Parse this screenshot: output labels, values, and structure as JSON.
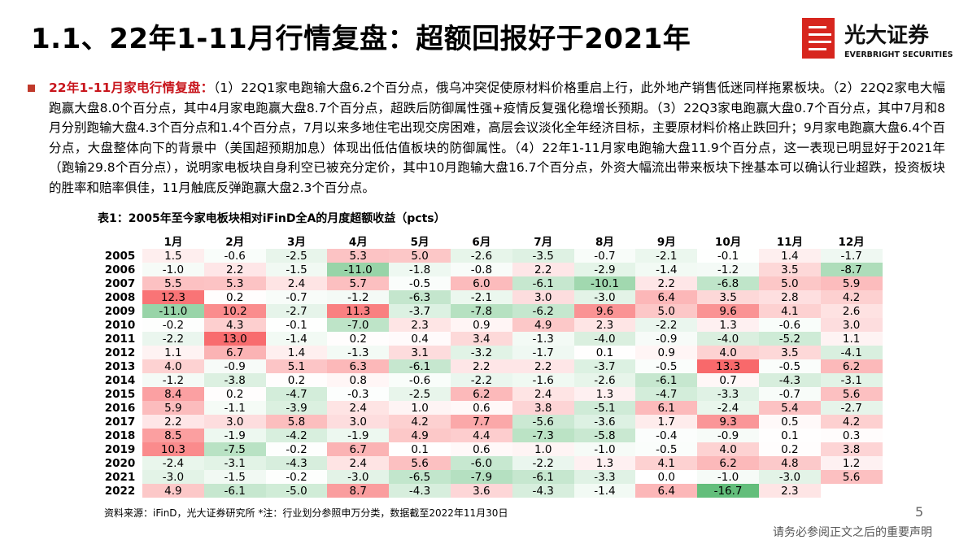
{
  "header": {
    "title": "1.1、22年1-11月行情复盘：超额回报好于2021年",
    "logo_cn": "光大证券",
    "logo_en": "EVERBRIGHT SECURITIES"
  },
  "summary": {
    "lead": "22年1-11月家电行情复盘：",
    "text": "（1）22Q1家电跑输大盘6.2个百分点，俄乌冲突促使原材料价格重启上行，此外地产销售低迷同样拖累板块。（2）22Q2家电大幅跑赢大盘8.0个百分点，其中4月家电跑赢大盘8.7个百分点，超跌后防御属性强+疫情反复强化稳增长预期。（3）22Q3家电跑赢大盘0.7个百分点，其中7月和8月分别跑输大盘4.3个百分点和1.4个百分点，7月以来多地住宅出现交房困难，高层会议淡化全年经济目标，主要原材料价格止跌回升；9月家电跑赢大盘6.4个百分点，大盘整体向下的背景中（美国超预期加息）体现出低估值板块的防御属性。（4）22年1-11月家电跑输大盘11.9个百分点，这一表现已明显好于2021年（跑输29.8个百分点），说明家电板块自身利空已被充分定价，其中10月跑输大盘16.7个百分点，外资大幅流出带来板块下挫基本可以确认行业超跌，投资板块的胜率和赔率俱佳，11月触底反弹跑赢大盘2.3个百分点。"
  },
  "table": {
    "caption": "表1：2005年至今家电板块相对iFinD全A的月度超额收益（pcts）",
    "columns": [
      "1月",
      "2月",
      "3月",
      "4月",
      "5月",
      "6月",
      "7月",
      "8月",
      "9月",
      "10月",
      "11月",
      "12月"
    ],
    "rows": [
      {
        "year": "2005",
        "values": [
          "1.5",
          "-0.6",
          "-2.5",
          "5.3",
          "5.0",
          "-2.6",
          "-3.5",
          "-0.7",
          "-2.1",
          "-0.1",
          "1.4",
          "-1.7"
        ]
      },
      {
        "year": "2006",
        "values": [
          "-1.0",
          "2.2",
          "-1.5",
          "-11.0",
          "-1.8",
          "-0.8",
          "2.2",
          "-2.9",
          "-1.4",
          "-1.2",
          "3.5",
          "-8.7"
        ]
      },
      {
        "year": "2007",
        "values": [
          "5.5",
          "5.3",
          "2.4",
          "5.7",
          "-0.5",
          "6.0",
          "-6.1",
          "-10.1",
          "2.2",
          "-6.8",
          "5.0",
          "5.9"
        ]
      },
      {
        "year": "2008",
        "values": [
          "12.3",
          "0.2",
          "-0.7",
          "-1.2",
          "-6.3",
          "-2.1",
          "3.0",
          "-3.0",
          "6.4",
          "3.5",
          "2.8",
          "4.2"
        ]
      },
      {
        "year": "2009",
        "values": [
          "-11.0",
          "10.2",
          "-2.7",
          "11.3",
          "-3.7",
          "-7.8",
          "-6.2",
          "9.6",
          "5.0",
          "9.6",
          "4.1",
          "2.6"
        ]
      },
      {
        "year": "2010",
        "values": [
          "-0.2",
          "4.3",
          "-0.1",
          "-7.0",
          "2.3",
          "0.9",
          "4.9",
          "2.3",
          "-2.2",
          "1.3",
          "-0.6",
          "3.0"
        ]
      },
      {
        "year": "2011",
        "values": [
          "-2.2",
          "13.0",
          "-1.4",
          "0.2",
          "0.4",
          "3.4",
          "-1.3",
          "-4.0",
          "-0.9",
          "-4.0",
          "-5.2",
          "1.1"
        ]
      },
      {
        "year": "2012",
        "values": [
          "1.1",
          "6.7",
          "1.4",
          "-1.3",
          "3.1",
          "-3.2",
          "-1.7",
          "0.1",
          "0.9",
          "4.0",
          "3.5",
          "-4.1"
        ]
      },
      {
        "year": "2013",
        "values": [
          "4.0",
          "-0.9",
          "5.1",
          "6.3",
          "-6.1",
          "2.2",
          "2.2",
          "-3.7",
          "-0.5",
          "13.3",
          "-0.5",
          "6.2"
        ]
      },
      {
        "year": "2014",
        "values": [
          "-1.2",
          "-3.8",
          "0.2",
          "0.8",
          "-0.6",
          "-2.2",
          "-1.6",
          "-2.6",
          "-6.1",
          "0.7",
          "-4.3",
          "-3.1"
        ]
      },
      {
        "year": "2015",
        "values": [
          "8.4",
          "0.2",
          "-4.7",
          "-0.3",
          "-2.5",
          "6.2",
          "2.4",
          "1.3",
          "-4.7",
          "-3.3",
          "-0.7",
          "5.6"
        ]
      },
      {
        "year": "2016",
        "values": [
          "5.9",
          "-1.1",
          "-3.9",
          "2.4",
          "1.0",
          "0.6",
          "3.8",
          "-5.1",
          "6.1",
          "-2.4",
          "5.4",
          "-2.7"
        ]
      },
      {
        "year": "2017",
        "values": [
          "2.2",
          "3.0",
          "5.8",
          "3.0",
          "4.2",
          "7.7",
          "-5.6",
          "-3.6",
          "1.7",
          "9.3",
          "0.5",
          "4.2"
        ]
      },
      {
        "year": "2018",
        "values": [
          "8.5",
          "-1.9",
          "-4.2",
          "-1.9",
          "4.9",
          "4.4",
          "-7.3",
          "-5.8",
          "-0.4",
          "-0.9",
          "0.1",
          "0.3"
        ]
      },
      {
        "year": "2019",
        "values": [
          "10.3",
          "-7.5",
          "-0.2",
          "6.7",
          "0.1",
          "0.6",
          "1.0",
          "-1.0",
          "-0.5",
          "4.0",
          "0.2",
          "3.8"
        ]
      },
      {
        "year": "2020",
        "values": [
          "-2.4",
          "-3.1",
          "-4.3",
          "2.4",
          "5.6",
          "-6.0",
          "-2.2",
          "1.3",
          "4.1",
          "6.2",
          "4.8",
          "1.2"
        ]
      },
      {
        "year": "2021",
        "values": [
          "-3.0",
          "-1.5",
          "-0.2",
          "-3.0",
          "-6.5",
          "-7.9",
          "-6.1",
          "-3.3",
          "0.0",
          "-1.0",
          "-3.0",
          "5.6"
        ]
      },
      {
        "year": "2022",
        "values": [
          "4.9",
          "-6.1",
          "-5.0",
          "8.7",
          "-4.3",
          "3.6",
          "-4.3",
          "-1.4",
          "6.4",
          "-16.7",
          "2.3",
          null
        ]
      }
    ]
  },
  "footer": {
    "source": "资料来源：iFinD，光大证券研究所 *注：行业划分参照申万分类，数据截至2022年11月30日",
    "page": "5",
    "disclaimer": "请务必参阅正文之后的重要声明"
  }
}
